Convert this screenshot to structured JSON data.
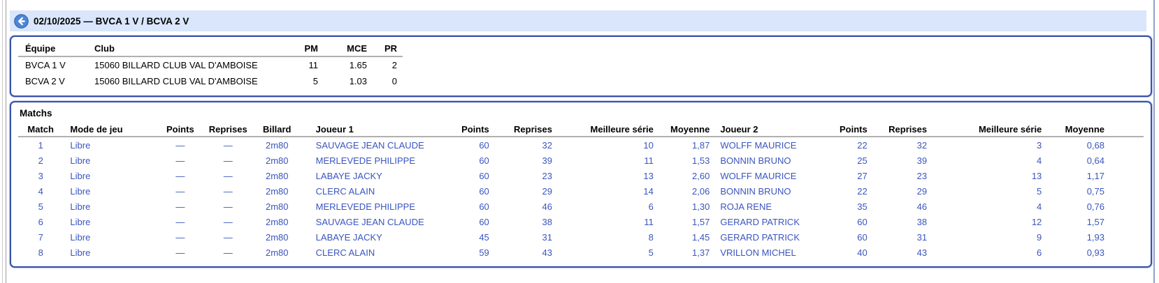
{
  "page": {
    "title": "02/10/2025 — BVCA 1 V / BCVA 2 V"
  },
  "icons": {
    "back": "arrow-left-circle"
  },
  "colors": {
    "accent_text_blue": "#3a55be",
    "titlebar_bg": "#d9e6fb",
    "box_border_blue": "#3a51a5",
    "back_icon_bg": "#4d85d6"
  },
  "teams": {
    "headers": [
      "Équipe",
      "Club",
      "PM",
      "MCE",
      "PR"
    ],
    "rows": [
      [
        "BVCA 1 V",
        "15060 BILLARD CLUB VAL D'AMBOISE",
        "11",
        "1.65",
        "2"
      ],
      [
        "BCVA 2 V",
        "15060 BILLARD CLUB VAL D'AMBOISE",
        "5",
        "1.03",
        "0"
      ]
    ]
  },
  "matchs": {
    "title": "Matchs",
    "headers": [
      "Match",
      "Mode de jeu",
      "Points",
      "Reprises",
      "Billard",
      "Joueur 1",
      "Points",
      "Reprises",
      "Meilleure série",
      "Moyenne",
      "Joueur 2",
      "Points",
      "Reprises",
      "Meilleure série",
      "Moyenne"
    ],
    "rows": [
      [
        "1",
        "Libre",
        "—",
        "—",
        "2m80",
        "SAUVAGE JEAN CLAUDE",
        "60",
        "32",
        "10",
        "1,87",
        "WOLFF MAURICE",
        "22",
        "32",
        "3",
        "0,68"
      ],
      [
        "2",
        "Libre",
        "—",
        "—",
        "2m80",
        "MERLEVEDE PHILIPPE",
        "60",
        "39",
        "11",
        "1,53",
        "BONNIN BRUNO",
        "25",
        "39",
        "4",
        "0,64"
      ],
      [
        "3",
        "Libre",
        "—",
        "—",
        "2m80",
        "LABAYE JACKY",
        "60",
        "23",
        "13",
        "2,60",
        "WOLFF MAURICE",
        "27",
        "23",
        "13",
        "1,17"
      ],
      [
        "4",
        "Libre",
        "—",
        "—",
        "2m80",
        "CLERC ALAIN",
        "60",
        "29",
        "14",
        "2,06",
        "BONNIN BRUNO",
        "22",
        "29",
        "5",
        "0,75"
      ],
      [
        "5",
        "Libre",
        "—",
        "—",
        "2m80",
        "MERLEVEDE PHILIPPE",
        "60",
        "46",
        "6",
        "1,30",
        "ROJA RENE",
        "35",
        "46",
        "4",
        "0,76"
      ],
      [
        "6",
        "Libre",
        "—",
        "—",
        "2m80",
        "SAUVAGE JEAN CLAUDE",
        "60",
        "38",
        "11",
        "1,57",
        "GERARD PATRICK",
        "60",
        "38",
        "12",
        "1,57"
      ],
      [
        "7",
        "Libre",
        "—",
        "—",
        "2m80",
        "LABAYE JACKY",
        "45",
        "31",
        "8",
        "1,45",
        "GERARD PATRICK",
        "60",
        "31",
        "9",
        "1,93"
      ],
      [
        "8",
        "Libre",
        "—",
        "—",
        "2m80",
        "CLERC ALAIN",
        "59",
        "43",
        "5",
        "1,37",
        "VRILLON MICHEL",
        "40",
        "43",
        "6",
        "0,93"
      ]
    ]
  }
}
